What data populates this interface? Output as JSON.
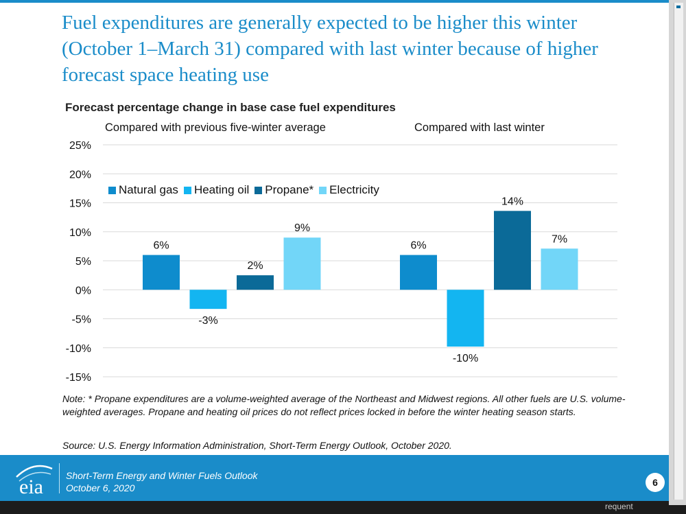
{
  "slide": {
    "title": "Fuel expenditures are generally expected to be higher this winter (October 1–March 31) compared with last winter because of higher forecast space heating use",
    "note": "Note: * Propane expenditures are a volume-weighted average of the Northeast and Midwest regions. All other fuels are U.S. volume-weighted averages. Propane and heating oil prices do not reflect prices locked in before the winter heating season starts.",
    "source": "Source: U.S. Energy Information Administration, Short-Term Energy Outlook, October 2020.",
    "footer": {
      "report": "Short-Term Energy and Winter Fuels Outlook",
      "date": "October 6, 2020",
      "logo_text": "eia",
      "page": "6"
    },
    "taskbar_text": "requent"
  },
  "chart_data": {
    "type": "bar",
    "title": "Forecast percentage change in base case fuel expenditures",
    "panels": [
      "Compared with previous five-winter average",
      "Compared with last winter"
    ],
    "series": [
      {
        "name": "Natural gas",
        "color": "#0e8ccd",
        "values": [
          6,
          6
        ],
        "labels": [
          "6%",
          "6%"
        ]
      },
      {
        "name": "Heating oil",
        "color": "#13b5f1",
        "values": [
          -3.3,
          -9.8
        ],
        "labels": [
          "-3%",
          "-10%"
        ]
      },
      {
        "name": "Propane*",
        "color": "#0b6a98",
        "values": [
          2.5,
          13.6
        ],
        "labels": [
          "2%",
          "14%"
        ]
      },
      {
        "name": "Electricity",
        "color": "#72d6f8",
        "values": [
          9,
          7.1
        ],
        "labels": [
          "9%",
          "7%"
        ]
      }
    ],
    "y_ticks": [
      "25%",
      "20%",
      "15%",
      "10%",
      "5%",
      "0%",
      "-5%",
      "-10%",
      "-15%"
    ],
    "ylim": [
      -15,
      25
    ],
    "grid": true,
    "legend": "inside-top-left"
  }
}
